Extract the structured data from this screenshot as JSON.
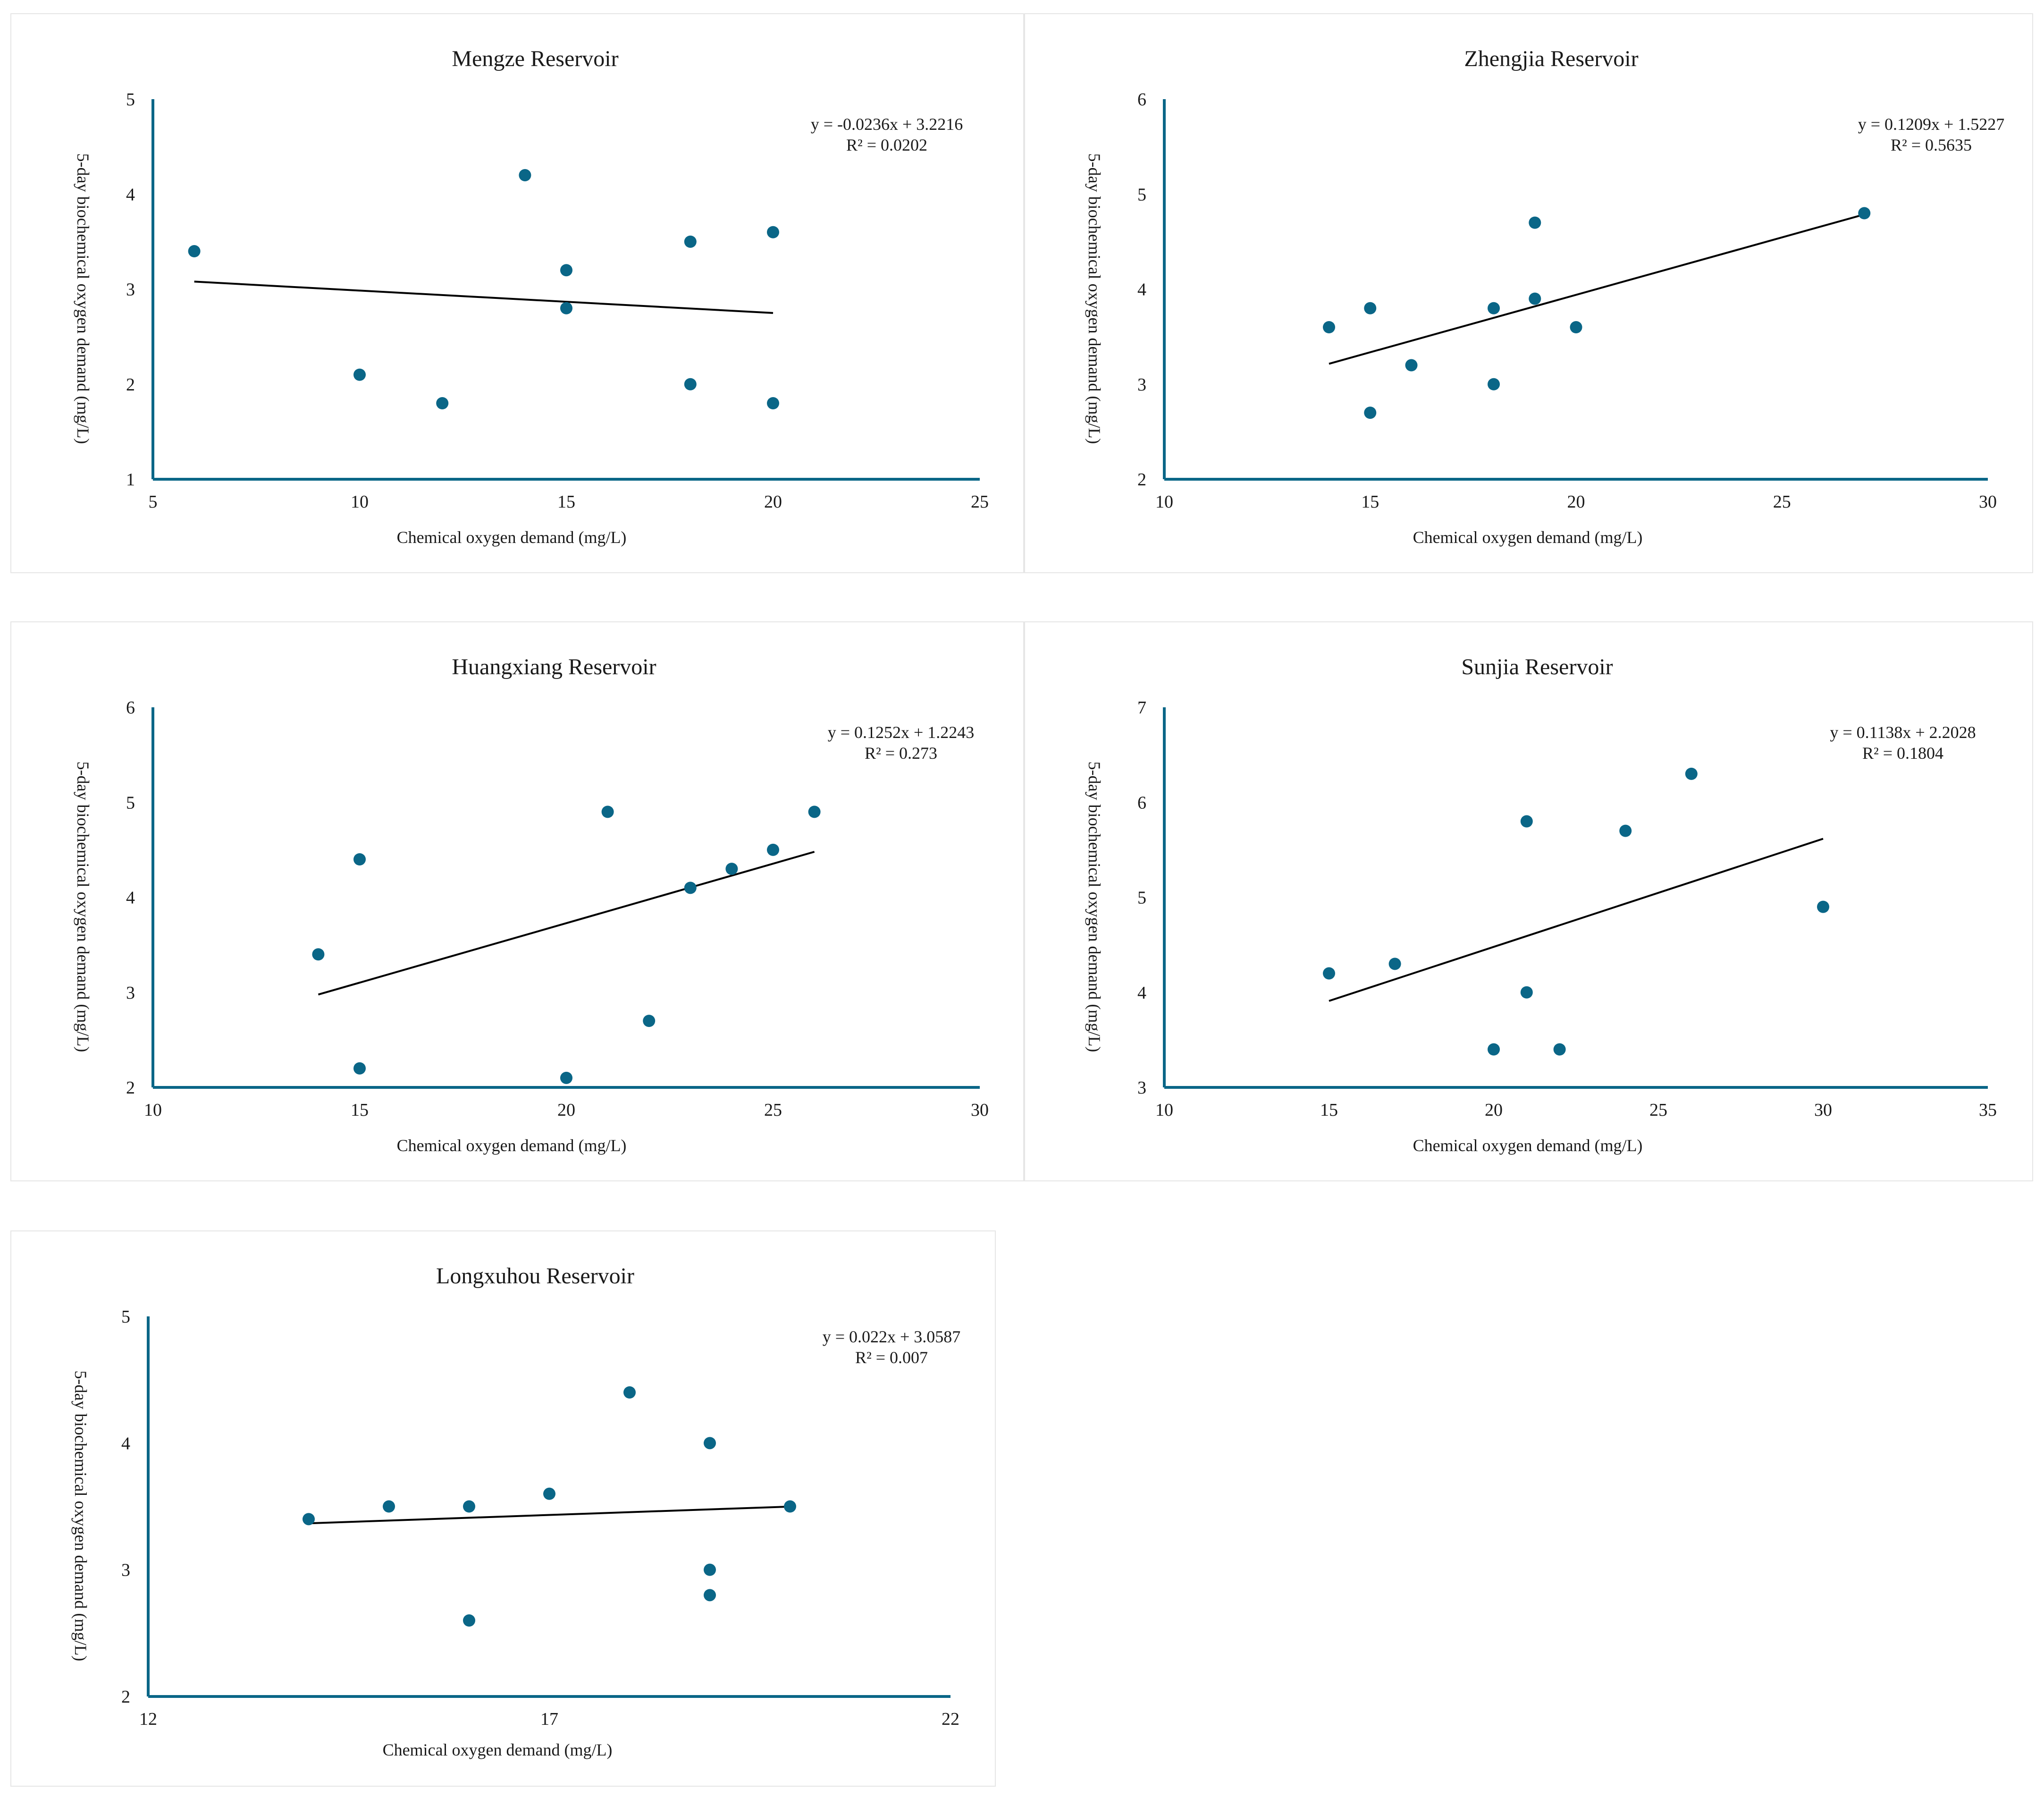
{
  "colors": {
    "axis": "#0a6687",
    "marker": "#0a6687",
    "trendline": "#000000"
  },
  "chart_data": [
    {
      "type": "scatter",
      "title": "Mengze Reservoir",
      "xlabel": "Chemical oxygen demand (mg/L)",
      "ylabel": "5-day biochemical oxygen demand (mg/L)",
      "xlim": [
        5,
        25
      ],
      "ylim": [
        1,
        5
      ],
      "xticks": [
        5,
        10,
        15,
        20,
        25
      ],
      "yticks": [
        1,
        2,
        3,
        4,
        5
      ],
      "points": [
        [
          6,
          3.4
        ],
        [
          10,
          2.1
        ],
        [
          12,
          1.8
        ],
        [
          14,
          4.2
        ],
        [
          15,
          3.2
        ],
        [
          15,
          2.8
        ],
        [
          18,
          3.5
        ],
        [
          18,
          2.0
        ],
        [
          20,
          3.6
        ],
        [
          20,
          1.8
        ]
      ],
      "trendline": {
        "slope": -0.0236,
        "intercept": 3.2216,
        "x_range": [
          6,
          20
        ]
      },
      "equation": "y = -0.0236x + 3.2216",
      "r_squared": "R² = 0.0202"
    },
    {
      "type": "scatter",
      "title": "Zhengjia Reservoir",
      "xlabel": "Chemical oxygen demand (mg/L)",
      "ylabel": "5-day biochemical oxygen demand (mg/L)",
      "xlim": [
        10,
        30
      ],
      "ylim": [
        2,
        6
      ],
      "xticks": [
        10,
        15,
        20,
        25,
        30
      ],
      "yticks": [
        2,
        3,
        4,
        5,
        6
      ],
      "points": [
        [
          14,
          3.6
        ],
        [
          15,
          3.8
        ],
        [
          15,
          2.7
        ],
        [
          16,
          3.2
        ],
        [
          18,
          3.8
        ],
        [
          18,
          3.0
        ],
        [
          19,
          4.7
        ],
        [
          19,
          3.9
        ],
        [
          20,
          3.6
        ],
        [
          27,
          4.8
        ]
      ],
      "trendline": {
        "slope": 0.1209,
        "intercept": 1.5227,
        "x_range": [
          14,
          27
        ]
      },
      "equation": "y = 0.1209x + 1.5227",
      "r_squared": "R² = 0.5635"
    },
    {
      "type": "scatter",
      "title": "Huangxiang Reservoir",
      "xlabel": "Chemical oxygen demand (mg/L)",
      "ylabel": "5-day biochemical oxygen demand (mg/L)",
      "xlim": [
        10,
        30
      ],
      "ylim": [
        2,
        6
      ],
      "xticks": [
        10,
        15,
        20,
        25,
        30
      ],
      "yticks": [
        2,
        3,
        4,
        5,
        6
      ],
      "points": [
        [
          14,
          3.4
        ],
        [
          15,
          4.4
        ],
        [
          15,
          2.2
        ],
        [
          20,
          2.1
        ],
        [
          21,
          4.9
        ],
        [
          22,
          2.7
        ],
        [
          23,
          4.1
        ],
        [
          24,
          4.3
        ],
        [
          25,
          4.5
        ],
        [
          26,
          4.9
        ]
      ],
      "trendline": {
        "slope": 0.1252,
        "intercept": 1.2243,
        "x_range": [
          14,
          26
        ]
      },
      "equation": "y = 0.1252x + 1.2243",
      "r_squared": "R² = 0.273"
    },
    {
      "type": "scatter",
      "title": "Sunjia Reservoir",
      "xlabel": "Chemical oxygen demand (mg/L)",
      "ylabel": "5-day biochemical oxygen demand (mg/L)",
      "xlim": [
        10,
        35
      ],
      "ylim": [
        3,
        7
      ],
      "xticks": [
        10,
        15,
        20,
        25,
        30,
        35
      ],
      "yticks": [
        3,
        4,
        5,
        6,
        7
      ],
      "points": [
        [
          15,
          4.2
        ],
        [
          17,
          4.3
        ],
        [
          20,
          3.4
        ],
        [
          21,
          5.8
        ],
        [
          21,
          4.0
        ],
        [
          22,
          3.4
        ],
        [
          24,
          5.7
        ],
        [
          26,
          6.3
        ],
        [
          30,
          4.9
        ]
      ],
      "trendline": {
        "slope": 0.1138,
        "intercept": 2.2028,
        "x_range": [
          15,
          30
        ]
      },
      "equation": "y = 0.1138x + 2.2028",
      "r_squared": "R² = 0.1804"
    },
    {
      "type": "scatter",
      "title": "Longxuhou Reservoir",
      "xlabel": "Chemical oxygen demand (mg/L)",
      "ylabel": "5-day biochemical oxygen demand (mg/L)",
      "xlim": [
        12,
        22
      ],
      "ylim": [
        2,
        5
      ],
      "xticks": [
        12,
        17,
        22
      ],
      "yticks": [
        2,
        3,
        4,
        5
      ],
      "points": [
        [
          14,
          3.4
        ],
        [
          15,
          3.5
        ],
        [
          16,
          3.5
        ],
        [
          16,
          2.6
        ],
        [
          17,
          3.6
        ],
        [
          18,
          4.4
        ],
        [
          19,
          4.0
        ],
        [
          19,
          3.0
        ],
        [
          19,
          2.8
        ],
        [
          20,
          3.5
        ]
      ],
      "trendline": {
        "slope": 0.022,
        "intercept": 3.0587,
        "x_range": [
          14,
          20
        ]
      },
      "equation": "y = 0.022x + 3.0587",
      "r_squared": "R² = 0.007"
    }
  ]
}
